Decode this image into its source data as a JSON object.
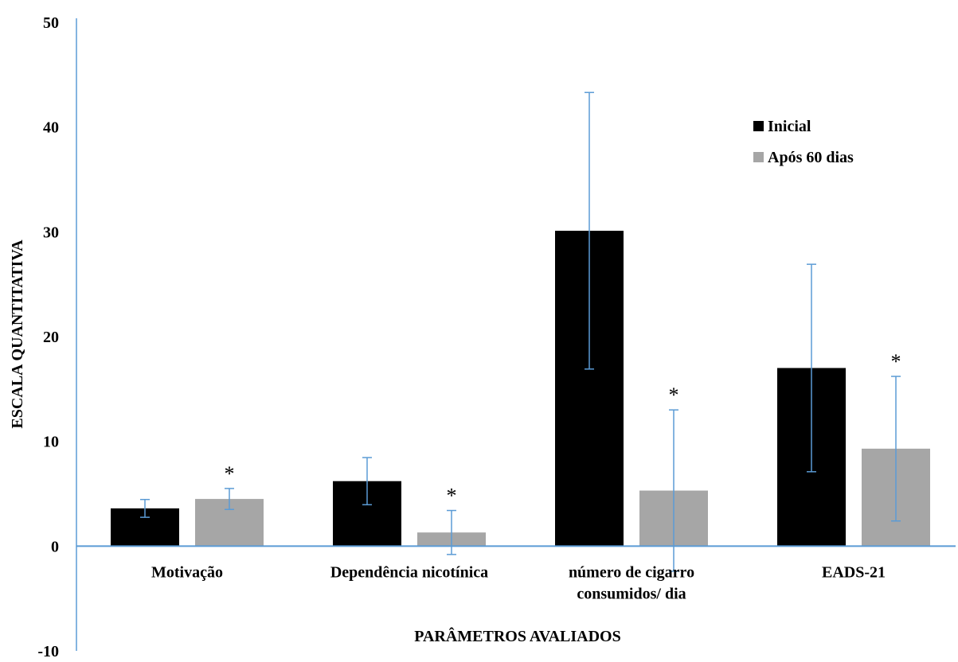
{
  "chart_data": {
    "type": "bar",
    "title": "",
    "xlabel": "PARÂMETROS AVALIADOS",
    "ylabel": "ESCALA QUANTITATIVA",
    "ylim": [
      -10,
      50
    ],
    "yticks": [
      "-10",
      "0",
      "10",
      "20",
      "30",
      "40",
      "50"
    ],
    "categories": [
      [
        "Motivação"
      ],
      [
        "Dependência nicotínica"
      ],
      [
        "número de cigarro",
        "consumidos/ dia"
      ],
      [
        "EADS-21"
      ]
    ],
    "series": [
      {
        "name": "Inicial",
        "color": "#000000",
        "values": [
          3.6,
          6.2,
          30.1,
          17.0
        ],
        "errors": [
          0.85,
          2.25,
          13.2,
          9.9
        ]
      },
      {
        "name": "Após 60 dias",
        "color": "#a6a6a6",
        "values": [
          4.5,
          1.3,
          5.3,
          9.3
        ],
        "errors": [
          1.0,
          2.1,
          7.7,
          6.9
        ]
      }
    ],
    "annotations": [
      "*",
      "*",
      "*",
      "*"
    ],
    "grid": false,
    "legend": "top-right",
    "colors": {
      "axis": "#5b9bd5",
      "error_bar": "#5b9bd5"
    }
  }
}
